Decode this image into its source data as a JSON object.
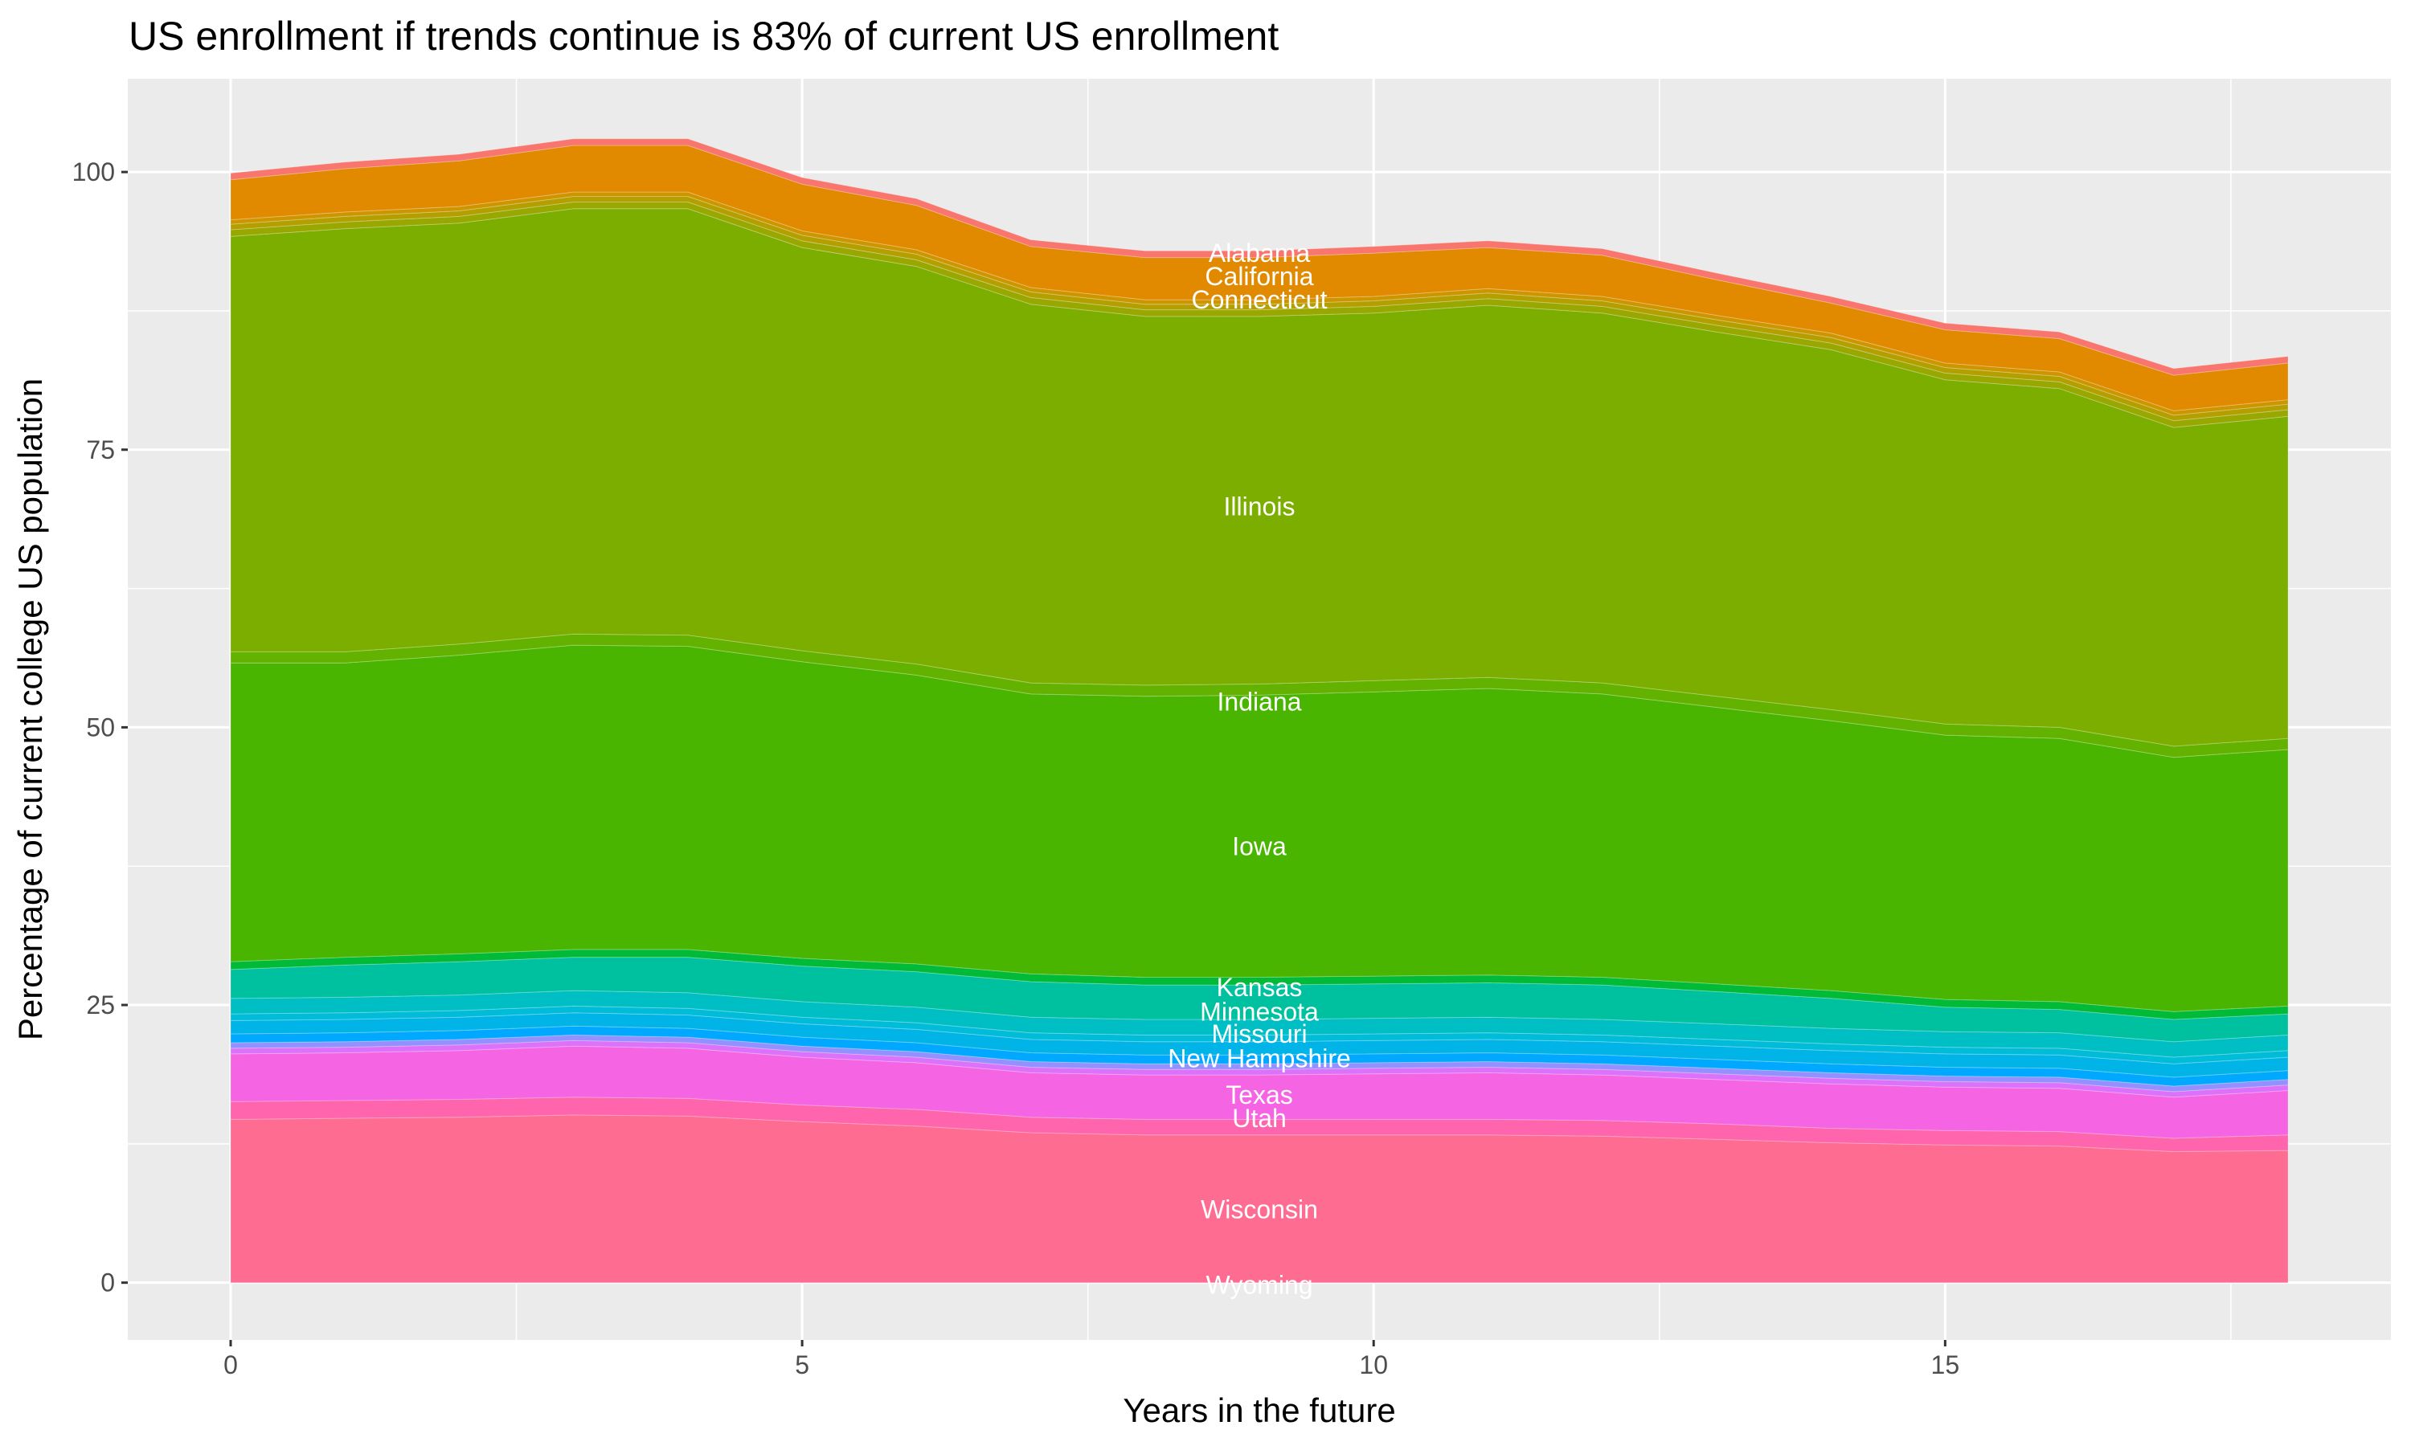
{
  "chart_data": {
    "type": "area",
    "stacked": true,
    "title": "US enrollment if trends continue is 83% of current US enrollment",
    "xlabel": "Years in the future",
    "ylabel": "Percentage of current college US population",
    "xlim": [
      -0.9,
      18.9
    ],
    "ylim": [
      -5.16,
      108.4
    ],
    "xticks": [
      0,
      5,
      10,
      15
    ],
    "xtick_labels": [
      "0",
      "5",
      "10",
      "15"
    ],
    "yticks": [
      0,
      25,
      50,
      75,
      100
    ],
    "ytick_labels": [
      "0",
      "25",
      "50",
      "75",
      "100"
    ],
    "grid": true,
    "legend": "none",
    "x": [
      0,
      1,
      2,
      3,
      4,
      5,
      6,
      7,
      8,
      9,
      10,
      11,
      12,
      13,
      14,
      15,
      16,
      17,
      18
    ],
    "series": [
      {
        "name": "Wyoming",
        "color": "#FF6C91",
        "values": [
          0,
          0,
          0,
          0,
          0,
          0,
          0,
          0,
          0,
          0,
          0,
          0,
          0,
          0,
          0,
          0,
          0,
          0,
          0
        ]
      },
      {
        "name": "Wisconsin",
        "color": "#FF6C91",
        "values": [
          14.7,
          14.8,
          14.9,
          15.1,
          15.0,
          14.5,
          14.1,
          13.5,
          13.3,
          13.3,
          13.3,
          13.3,
          13.2,
          12.9,
          12.6,
          12.4,
          12.3,
          11.8,
          11.9
        ]
      },
      {
        "name": "Utah",
        "color": "#FF65AC",
        "values": [
          1.6,
          1.6,
          1.6,
          1.6,
          1.6,
          1.5,
          1.5,
          1.4,
          1.4,
          1.4,
          1.4,
          1.4,
          1.4,
          1.4,
          1.3,
          1.3,
          1.3,
          1.2,
          1.4
        ]
      },
      {
        "name": "Texas",
        "color": "#F564E3",
        "values": [
          4.3,
          4.3,
          4.4,
          4.6,
          4.5,
          4.3,
          4.2,
          4.0,
          4.0,
          4.0,
          4.1,
          4.2,
          4.1,
          4.0,
          4.0,
          3.9,
          3.9,
          3.7,
          4.0
        ]
      },
      {
        "color": "#DC71FA",
        "values": [
          0.5,
          0.5,
          0.5,
          0.5,
          0.5,
          0.5,
          0.5,
          0.5,
          0.5,
          0.5,
          0.5,
          0.5,
          0.5,
          0.5,
          0.5,
          0.5,
          0.5,
          0.5,
          0.5
        ]
      },
      {
        "color": "#9590FF",
        "values": [
          0.5,
          0.5,
          0.5,
          0.5,
          0.5,
          0.5,
          0.5,
          0.5,
          0.5,
          0.5,
          0.5,
          0.5,
          0.5,
          0.5,
          0.5,
          0.5,
          0.5,
          0.5,
          0.5
        ]
      },
      {
        "name": "New Hampshire",
        "color": "#00A9FF",
        "values": [
          0.8,
          0.8,
          0.8,
          0.8,
          0.8,
          0.8,
          0.8,
          0.8,
          0.8,
          0.8,
          0.8,
          0.8,
          0.8,
          0.8,
          0.8,
          0.8,
          0.8,
          0.8,
          0.8
        ]
      },
      {
        "name": "Missouri",
        "color": "#00B4E7",
        "values": [
          1.2,
          1.2,
          1.2,
          1.2,
          1.2,
          1.2,
          1.2,
          1.2,
          1.2,
          1.2,
          1.2,
          1.2,
          1.2,
          1.2,
          1.2,
          1.2,
          1.2,
          1.2,
          1.2
        ]
      },
      {
        "color": "#00BCD8",
        "values": [
          0.6,
          0.6,
          0.6,
          0.6,
          0.6,
          0.6,
          0.6,
          0.6,
          0.6,
          0.6,
          0.6,
          0.6,
          0.6,
          0.6,
          0.6,
          0.6,
          0.6,
          0.6,
          0.6
        ]
      },
      {
        "name": "Minnesota",
        "color": "#00BFC4",
        "values": [
          1.4,
          1.4,
          1.4,
          1.4,
          1.4,
          1.4,
          1.4,
          1.4,
          1.4,
          1.4,
          1.4,
          1.4,
          1.4,
          1.4,
          1.4,
          1.4,
          1.4,
          1.4,
          1.4
        ]
      },
      {
        "name": "Kansas",
        "color": "#00C19F",
        "values": [
          2.6,
          2.9,
          3.0,
          3.0,
          3.2,
          3.2,
          3.2,
          3.2,
          3.1,
          3.1,
          3.1,
          3.1,
          3.1,
          2.9,
          2.7,
          2.2,
          2.1,
          2.0,
          1.9
        ]
      },
      {
        "color": "#00BA38",
        "values": [
          0.7,
          0.7,
          0.7,
          0.7,
          0.7,
          0.7,
          0.7,
          0.7,
          0.7,
          0.7,
          0.7,
          0.7,
          0.7,
          0.7,
          0.7,
          0.7,
          0.7,
          0.7,
          0.7
        ]
      },
      {
        "name": "Iowa",
        "color": "#49B500",
        "values": [
          26.9,
          26.5,
          26.9,
          27.4,
          27.3,
          26.7,
          26.0,
          25.2,
          25.3,
          25.4,
          25.6,
          25.8,
          25.5,
          24.9,
          24.3,
          23.8,
          23.7,
          22.9,
          23.1
        ]
      },
      {
        "name": "Indiana",
        "color": "#64B200",
        "values": [
          1.0,
          1.0,
          1.0,
          1.0,
          1.0,
          1.0,
          1.0,
          1.0,
          1.0,
          1.0,
          1.0,
          1.0,
          1.0,
          1.0,
          1.0,
          1.0,
          1.0,
          1.0,
          1.0
        ]
      },
      {
        "name": "Illinois",
        "color": "#7CAE00",
        "values": [
          37.4,
          38.1,
          37.9,
          38.3,
          38.4,
          36.3,
          35.8,
          34.1,
          33.2,
          33.1,
          33.1,
          33.5,
          33.3,
          32.8,
          32.4,
          31.0,
          30.5,
          28.7,
          29.0
        ]
      },
      {
        "name": "Connecticut",
        "color": "#99A800",
        "values": [
          0.6,
          0.6,
          0.6,
          0.6,
          0.6,
          0.6,
          0.6,
          0.6,
          0.6,
          0.6,
          0.6,
          0.6,
          0.6,
          0.6,
          0.6,
          0.6,
          0.6,
          0.6,
          0.6
        ]
      },
      {
        "color": "#B3A000",
        "values": [
          0.5,
          0.5,
          0.5,
          0.5,
          0.5,
          0.5,
          0.5,
          0.5,
          0.5,
          0.5,
          0.5,
          0.5,
          0.5,
          0.5,
          0.5,
          0.5,
          0.5,
          0.5,
          0.5
        ]
      },
      {
        "color": "#CD9600",
        "values": [
          0.4,
          0.4,
          0.4,
          0.4,
          0.4,
          0.4,
          0.4,
          0.4,
          0.4,
          0.4,
          0.4,
          0.4,
          0.4,
          0.4,
          0.4,
          0.4,
          0.4,
          0.4,
          0.4
        ]
      },
      {
        "name": "California",
        "color": "#E18A00",
        "values": [
          3.6,
          3.9,
          4.1,
          4.2,
          4.2,
          4.2,
          4.0,
          3.7,
          3.8,
          3.8,
          3.9,
          3.7,
          3.7,
          3.2,
          2.7,
          3.0,
          3.0,
          3.2,
          3.3
        ]
      },
      {
        "name": "Alabama",
        "color": "#F8766D",
        "values": [
          0.6,
          0.6,
          0.6,
          0.6,
          0.6,
          0.6,
          0.6,
          0.6,
          0.6,
          0.6,
          0.6,
          0.6,
          0.6,
          0.6,
          0.6,
          0.6,
          0.6,
          0.6,
          0.6
        ]
      }
    ],
    "annotations": [
      {
        "text": "Alabama",
        "x": 9,
        "y": 92.7
      },
      {
        "text": "California",
        "x": 9,
        "y": 90.6
      },
      {
        "text": "Connecticut",
        "x": 9,
        "y": 88.5
      },
      {
        "text": "Illinois",
        "x": 9,
        "y": 69.9
      },
      {
        "text": "Indiana",
        "x": 9,
        "y": 52.3
      },
      {
        "text": "Iowa",
        "x": 9,
        "y": 39.3
      },
      {
        "text": "Kansas",
        "x": 9,
        "y": 26.6
      },
      {
        "text": "Minnesota",
        "x": 9,
        "y": 24.4
      },
      {
        "text": "Missouri",
        "x": 9,
        "y": 22.4
      },
      {
        "text": "New Hampshire",
        "x": 9,
        "y": 20.2
      },
      {
        "text": "Texas",
        "x": 9,
        "y": 16.9
      },
      {
        "text": "Utah",
        "x": 9,
        "y": 14.8
      },
      {
        "text": "Wisconsin",
        "x": 9,
        "y": 6.6
      },
      {
        "text": "Wyoming",
        "x": 9,
        "y": -0.2
      }
    ]
  }
}
